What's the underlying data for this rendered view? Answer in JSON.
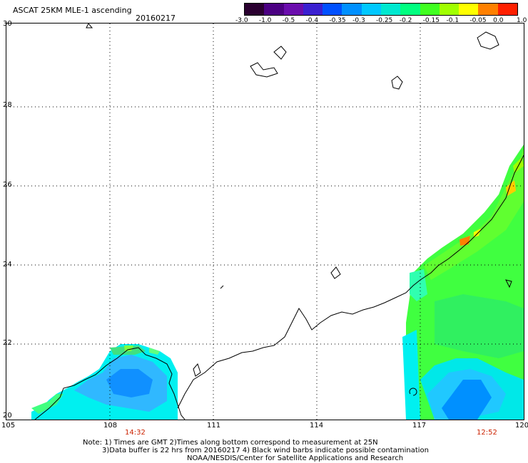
{
  "header": {
    "title": "ASCAT 25KM MLE-1 ascending",
    "date": "20160217"
  },
  "colorbar": {
    "tick_labels": [
      "-3.0",
      "-1.0",
      "-0.5",
      "-0.4",
      "-0.35",
      "-0.3",
      "-0.25",
      "-0.2",
      "-0.15",
      "-0.1",
      "-0.05",
      "0.0",
      "1.0"
    ],
    "colors": [
      "#2a0030",
      "#4b0082",
      "#6a0dad",
      "#3a20d0",
      "#0050ff",
      "#0090ff",
      "#00c8ff",
      "#00e8d0",
      "#00ff80",
      "#40ff20",
      "#a0ff00",
      "#ffff00",
      "#ff8000",
      "#ff2000"
    ]
  },
  "map": {
    "lon_labels": [
      "105",
      "108",
      "111",
      "114",
      "117",
      "120"
    ],
    "lat_labels": [
      "30",
      "28",
      "26",
      "24",
      "22",
      "20"
    ],
    "pass_times": [
      "14:32",
      "12:52"
    ],
    "colors": {
      "time_label": "#cc2200",
      "coast": "#000000",
      "grid": "#000000"
    }
  },
  "notes": {
    "line1": "Note: 1) Times are GMT 2)Times along bottom correspond to measurement at 25N",
    "line2": "3)Data buffer is 22 hrs from 20160217 4) Black wind barbs indicate possible contamination",
    "line3": "NOAA/NESDIS/Center for Satellite Applications and Research"
  }
}
